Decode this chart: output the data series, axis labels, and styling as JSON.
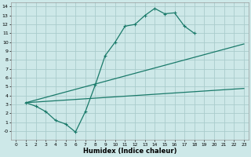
{
  "xlabel": "Humidex (Indice chaleur)",
  "background_color": "#cde8e8",
  "grid_color": "#aacccc",
  "line_color": "#1a7a6a",
  "xlim": [
    -0.5,
    23.5
  ],
  "ylim": [
    -1.0,
    14.5
  ],
  "xticks": [
    0,
    1,
    2,
    3,
    4,
    5,
    6,
    7,
    8,
    9,
    10,
    11,
    12,
    13,
    14,
    15,
    16,
    17,
    18,
    19,
    20,
    21,
    22,
    23
  ],
  "yticks": [
    0,
    1,
    2,
    3,
    4,
    5,
    6,
    7,
    8,
    9,
    10,
    11,
    12,
    13,
    14
  ],
  "ytick_labels": [
    "-0",
    "1",
    "2",
    "3",
    "4",
    "5",
    "6",
    "7",
    "8",
    "9",
    "10",
    "11",
    "12",
    "13",
    "14"
  ],
  "series": [
    {
      "x": [
        1,
        2,
        3,
        4,
        5,
        6,
        7,
        8,
        9,
        10,
        11,
        12,
        13,
        14,
        15,
        16,
        17,
        18
      ],
      "y": [
        3.2,
        2.8,
        2.2,
        1.2,
        0.8,
        -0.1,
        2.2,
        5.2,
        8.5,
        10.0,
        11.8,
        12.0,
        13.0,
        13.8,
        13.2,
        13.3,
        11.8,
        11.0
      ],
      "marker": "+"
    },
    {
      "x": [
        1,
        23
      ],
      "y": [
        3.2,
        9.8
      ],
      "marker": null
    },
    {
      "x": [
        1,
        23
      ],
      "y": [
        3.2,
        4.8
      ],
      "marker": null
    }
  ]
}
